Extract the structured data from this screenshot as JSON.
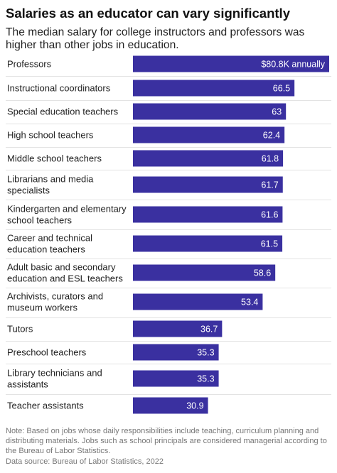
{
  "title": "Salaries as an educator can vary significantly",
  "subtitle": "The median salary for college instructors and professors was higher than other jobs in education.",
  "note": "Note: Based on jobs whose daily responsibilities include teaching, curriculum planning and distributing materials. Jobs such as school principals are considered managerial according to the Bureau of Labor Statistics.",
  "source": "Data source: Bureau of Labor Statistics, 2022",
  "colors": {
    "bar": "#3a30a0",
    "divider": "#e3e3e3",
    "value_text": "#ffffff"
  },
  "chart_data": {
    "type": "bar",
    "orientation": "horizontal",
    "grid": false,
    "categories": [
      [
        "Professors"
      ],
      [
        "Instructional coordinators"
      ],
      [
        "Special education teachers"
      ],
      [
        "High school teachers"
      ],
      [
        "Middle school teachers"
      ],
      [
        "Librarians and media",
        "specialists"
      ],
      [
        "Kindergarten and elementary",
        "school teachers"
      ],
      [
        "Career and technical",
        "education teachers"
      ],
      [
        "Adult basic and secondary",
        "education and ESL teachers"
      ],
      [
        "Archivists, curators and",
        "museum workers"
      ],
      [
        "Tutors"
      ],
      [
        "Preschool teachers"
      ],
      [
        "Library technicians and",
        "assistants"
      ],
      [
        "Teacher assistants"
      ]
    ],
    "values": [
      80.8,
      66.5,
      63,
      62.4,
      61.8,
      61.7,
      61.6,
      61.5,
      58.6,
      53.4,
      36.7,
      35.3,
      35.3,
      30.9
    ],
    "value_labels": [
      "$80.8K annually",
      "66.5",
      "63",
      "62.4",
      "61.8",
      "61.7",
      "61.6",
      "61.5",
      "58.6",
      "53.4",
      "36.7",
      "35.3",
      "35.3",
      "30.9"
    ],
    "xlim": [
      0,
      80.8
    ]
  }
}
